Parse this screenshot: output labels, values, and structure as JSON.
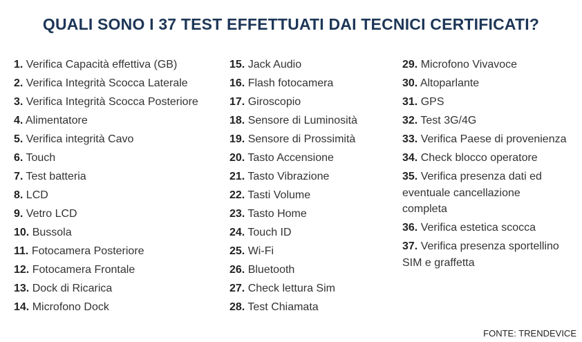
{
  "title": "QUALI SONO I 37 TEST EFFETTUATI DAI TECNICI CERTIFICATI?",
  "columns": [
    [
      {
        "number": "1.",
        "text": "Verifica Capacità effettiva (GB)"
      },
      {
        "number": "2.",
        "text": "Verifica Integrità Scocca Laterale"
      },
      {
        "number": "3.",
        "text": "Verifica Integrità Scocca Posteriore"
      },
      {
        "number": "4.",
        "text": "Alimentatore"
      },
      {
        "number": "5.",
        "text": "Verifica integrità Cavo"
      },
      {
        "number": "6.",
        "text": "Touch"
      },
      {
        "number": "7.",
        "text": "Test batteria"
      },
      {
        "number": "8.",
        "text": "LCD"
      },
      {
        "number": "9.",
        "text": "Vetro LCD"
      },
      {
        "number": "10.",
        "text": "Bussola"
      },
      {
        "number": "11.",
        "text": "Fotocamera Posteriore"
      },
      {
        "number": "12.",
        "text": "Fotocamera Frontale"
      },
      {
        "number": "13.",
        "text": "Dock di Ricarica"
      },
      {
        "number": "14.",
        "text": "Microfono Dock"
      }
    ],
    [
      {
        "number": "15.",
        "text": "Jack Audio"
      },
      {
        "number": "16.",
        "text": "Flash fotocamera"
      },
      {
        "number": "17.",
        "text": "Giroscopio"
      },
      {
        "number": "18.",
        "text": "Sensore di Luminosità"
      },
      {
        "number": "19.",
        "text": "Sensore di Prossimità"
      },
      {
        "number": "20.",
        "text": "Tasto Accensione"
      },
      {
        "number": "21.",
        "text": "Tasto Vibrazione"
      },
      {
        "number": "22.",
        "text": "Tasti Volume"
      },
      {
        "number": "23.",
        "text": "Tasto Home"
      },
      {
        "number": "24.",
        "text": "Touch ID"
      },
      {
        "number": "25.",
        "text": "Wi-Fi"
      },
      {
        "number": "26.",
        "text": "Bluetooth"
      },
      {
        "number": "27.",
        "text": "Check lettura Sim"
      },
      {
        "number": "28.",
        "text": "Test Chiamata"
      }
    ],
    [
      {
        "number": "29.",
        "text": "Microfono Vivavoce"
      },
      {
        "number": "30.",
        "text": "Altoparlante"
      },
      {
        "number": "31.",
        "text": "GPS"
      },
      {
        "number": "32.",
        "text": "Test 3G/4G"
      },
      {
        "number": "33.",
        "text": "Verifica Paese di provenienza"
      },
      {
        "number": "34.",
        "text": "Check blocco operatore"
      },
      {
        "number": "35.",
        "text": "Verifica presenza dati ed eventuale cancellazione completa"
      },
      {
        "number": "36.",
        "text": "Verifica estetica scocca"
      },
      {
        "number": "37.",
        "text": "Verifica presenza sportellino SIM e graffetta"
      }
    ]
  ],
  "source": "FONTE: TRENDEVICE"
}
